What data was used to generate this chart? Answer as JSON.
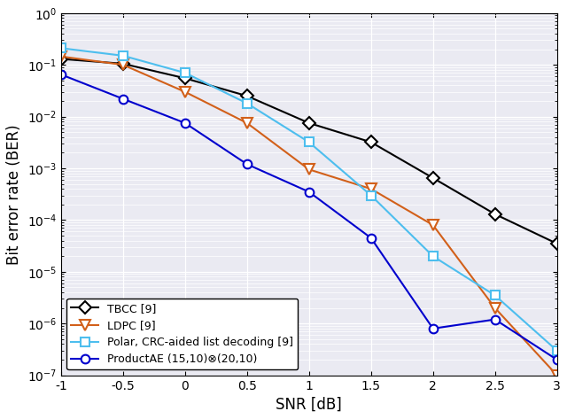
{
  "snr": [
    -1,
    -0.5,
    0,
    0.5,
    1,
    1.5,
    2,
    2.5,
    3
  ],
  "tbcc": [
    0.13,
    0.105,
    0.055,
    0.025,
    0.0075,
    0.0032,
    0.00065,
    0.00013,
    3.5e-05
  ],
  "ldpc": [
    0.145,
    0.1,
    0.03,
    0.0075,
    0.00095,
    0.0004,
    8e-05,
    2e-06,
    1e-07
  ],
  "polar": [
    0.21,
    0.15,
    0.07,
    0.018,
    0.0032,
    0.0003,
    2e-05,
    3.5e-06,
    3e-07
  ],
  "productae": [
    0.065,
    0.022,
    0.0075,
    0.0012,
    0.00035,
    4.5e-05,
    8e-07,
    1.2e-06,
    2e-07
  ],
  "tbcc_color": "#000000",
  "ldpc_color": "#D2601A",
  "polar_color": "#4DBEEE",
  "productae_color": "#0000CD",
  "xlabel": "SNR [dB]",
  "ylabel": "Bit error rate (BER)",
  "xlim": [
    -1,
    3
  ],
  "ylim": [
    1e-07,
    1
  ],
  "xticks": [
    -1,
    -0.5,
    0,
    0.5,
    1,
    1.5,
    2,
    2.5,
    3
  ],
  "legend_tbcc": "TBCC [9]",
  "legend_ldpc": "LDPC [9]",
  "legend_polar": "Polar, CRC-aided list decoding [9]",
  "legend_productae": "ProductAE (15,10)⊗(20,10)",
  "bg_color": "#f0f0f0"
}
